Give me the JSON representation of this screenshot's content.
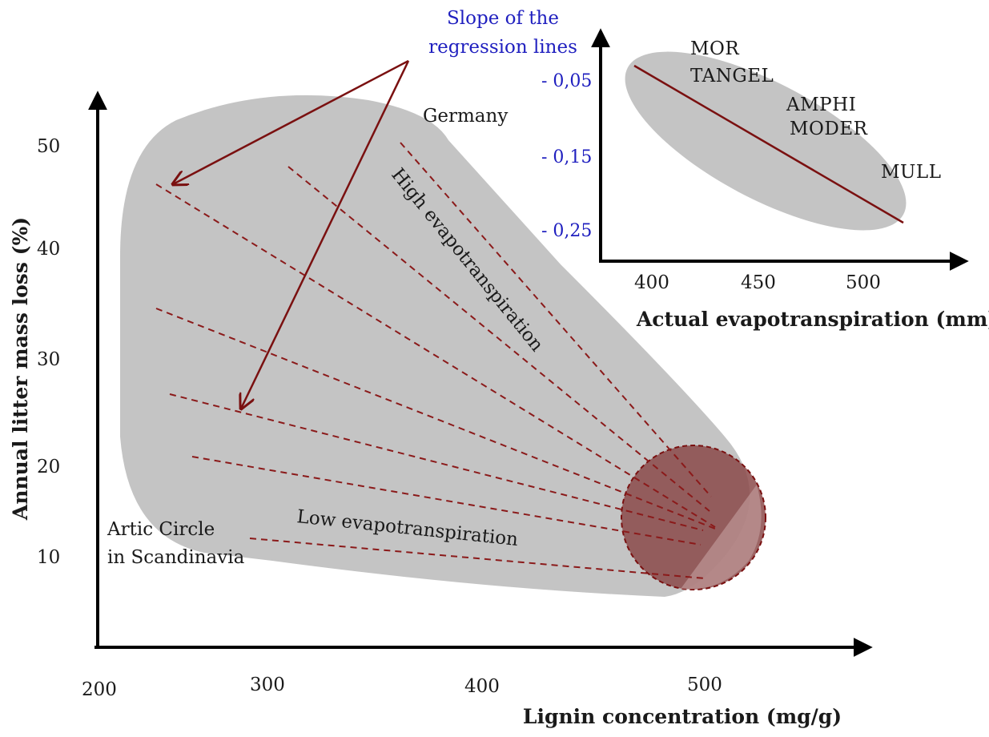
{
  "main_plot": {
    "x_axis": {
      "title": "Lignin concentration (mg/g)",
      "ticks": [
        "200",
        "300",
        "400",
        "500"
      ]
    },
    "y_axis": {
      "title": "Annual litter mass loss (%)",
      "ticks": [
        "10",
        "20",
        "30",
        "40",
        "50"
      ]
    },
    "region_labels": {
      "top": "Germany",
      "bottom_line1": "Artic Circle",
      "bottom_line2": "in Scandinavia"
    },
    "annotations": {
      "high": "High evapotranspiration",
      "low": "Low evapotranspiration",
      "slope_line1": "Slope of the",
      "slope_line2": "regression lines"
    },
    "regression_line_count": 8
  },
  "inset_plot": {
    "x_axis": {
      "title": "Actual evapotranspiration (mm)",
      "ticks": [
        "400",
        "450",
        "500"
      ]
    },
    "y_axis": {
      "ticks": [
        "- 0,05",
        "- 0,15",
        "- 0,25"
      ]
    },
    "humus_forms": [
      "MOR",
      "TANGEL",
      "AMPHI",
      "MODER",
      "MULL"
    ]
  },
  "colors": {
    "envelope": "#c4c4c4",
    "regression": "#8b1a1a",
    "slope_text": "#1f1fbf",
    "convergence_circle": "#8b4a4a"
  }
}
